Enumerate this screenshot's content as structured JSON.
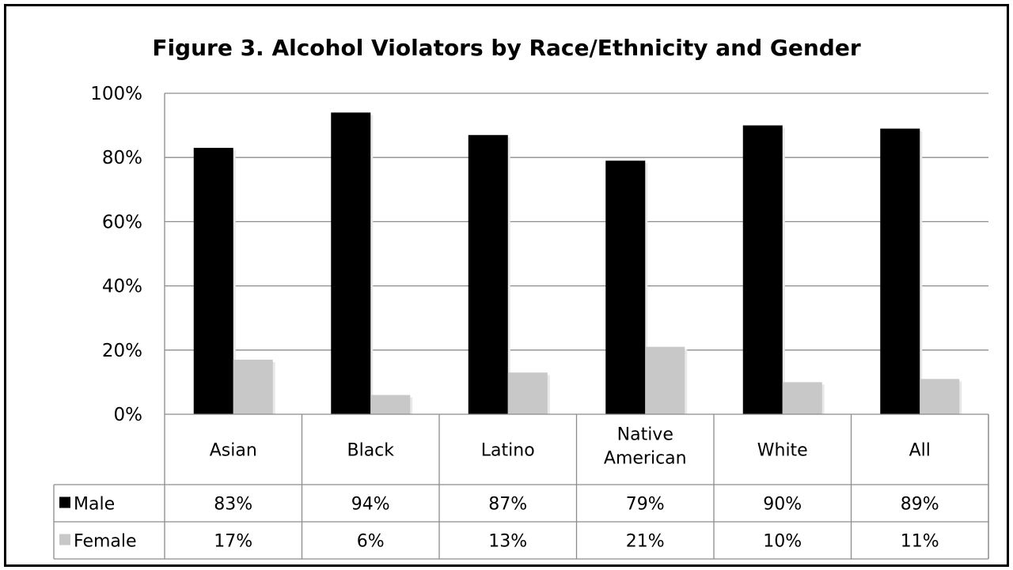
{
  "chart_data": {
    "type": "bar",
    "title": "Figure 3. Alcohol Violators by Race/Ethnicity and Gender",
    "categories": [
      "Asian",
      "Black",
      "Latino",
      "Native American",
      "White",
      "All"
    ],
    "series": [
      {
        "name": "Male",
        "values": [
          83,
          94,
          87,
          79,
          90,
          89
        ],
        "color": "#000000",
        "labels": [
          "83%",
          "94%",
          "87%",
          "79%",
          "90%",
          "89%"
        ]
      },
      {
        "name": "Female",
        "values": [
          17,
          6,
          13,
          21,
          10,
          11
        ],
        "color": "#c8c8c8",
        "labels": [
          "17%",
          "6%",
          "13%",
          "21%",
          "10%",
          "11%"
        ]
      }
    ],
    "ylim": [
      0,
      100
    ],
    "yticks": [
      "0%",
      "20%",
      "40%",
      "60%",
      "80%",
      "100%"
    ],
    "grid": true,
    "legend": "data-table"
  }
}
